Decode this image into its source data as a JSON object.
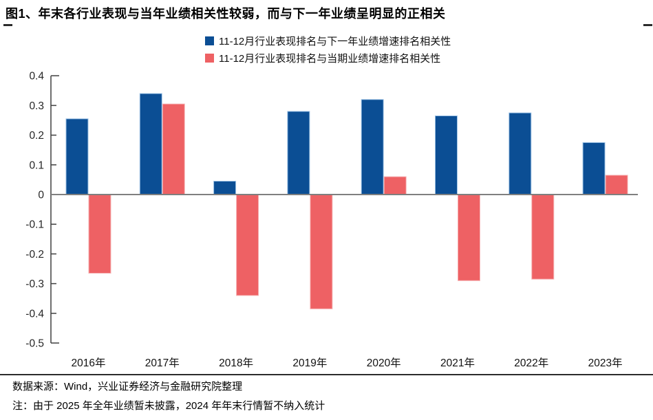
{
  "header": {
    "title": "图1、年末各行业表现与当年业绩相关性较弱，而与下一年业绩呈明显的正相关"
  },
  "legend": [
    {
      "label": "11-12月行业表现排名与下一年业绩增速排名相关性",
      "color": "#0b4e94"
    },
    {
      "label": "11-12月行业表现排名与当期业绩增速排名相关性",
      "color": "#ee6164"
    }
  ],
  "chart_data": {
    "type": "bar",
    "categories": [
      "2016年",
      "2017年",
      "2018年",
      "2019年",
      "2020年",
      "2021年",
      "2022年",
      "2023年"
    ],
    "series": [
      {
        "name": "11-12月行业表现排名与下一年业绩增速排名相关性",
        "color": "#0b4e94",
        "edge_color": "#9cc2e5",
        "values": [
          0.255,
          0.34,
          0.045,
          0.28,
          0.32,
          0.265,
          0.275,
          0.175
        ]
      },
      {
        "name": "11-12月行业表现排名与当期业绩增速排名相关性",
        "color": "#ee6164",
        "edge_color": "#f6b3b5",
        "values": [
          -0.265,
          0.305,
          -0.34,
          -0.385,
          0.06,
          -0.29,
          -0.285,
          0.065
        ]
      }
    ],
    "title": "",
    "xlabel": "",
    "ylabel": "",
    "ylim": [
      -0.5,
      0.4
    ],
    "ytick_step": 0.1,
    "grid": false,
    "legend_position": "top",
    "zero_line_color": "#7f7f7f",
    "axis_color": "#3f3f3f"
  },
  "footer": {
    "source": "数据来源：Wind，兴业证券经济与金融研究院整理",
    "note": "注：由于 2025 年全年业绩暂未披露，2024 年年末行情暂不纳入统计"
  }
}
